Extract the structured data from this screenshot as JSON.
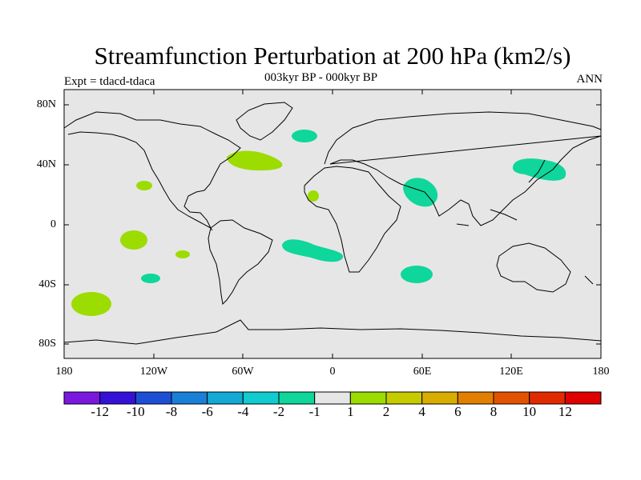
{
  "title": "Streamfunction Perturbation at 200 hPa (km2/s)",
  "subtitle": "003kyr BP - 000kyr BP",
  "left_label": "Expt = tdacd-tdaca",
  "right_label": "ANN",
  "lat_labels": [
    "80N",
    "40N",
    "0",
    "40S",
    "80S"
  ],
  "lon_labels": [
    "180",
    "120W",
    "60W",
    "0",
    "60E",
    "120E",
    "180"
  ],
  "colorbar": {
    "colors": [
      "#7b18e0",
      "#3510d8",
      "#1c4ed6",
      "#1a7fd6",
      "#12a9d4",
      "#10cbcf",
      "#0fd69a",
      "#e6e6e6",
      "#9cdc00",
      "#c6cb00",
      "#d9ac00",
      "#e27f00",
      "#e35200",
      "#e22a00",
      "#e00000"
    ],
    "labels": [
      "-12",
      "-10",
      "-8",
      "-6",
      "-4",
      "-2",
      "-1",
      "1",
      "2",
      "4",
      "6",
      "8",
      "10",
      "12"
    ]
  },
  "colors": {
    "ocean": "#e6e6e6",
    "land": "#e6e6e6",
    "coast": "#000000"
  }
}
